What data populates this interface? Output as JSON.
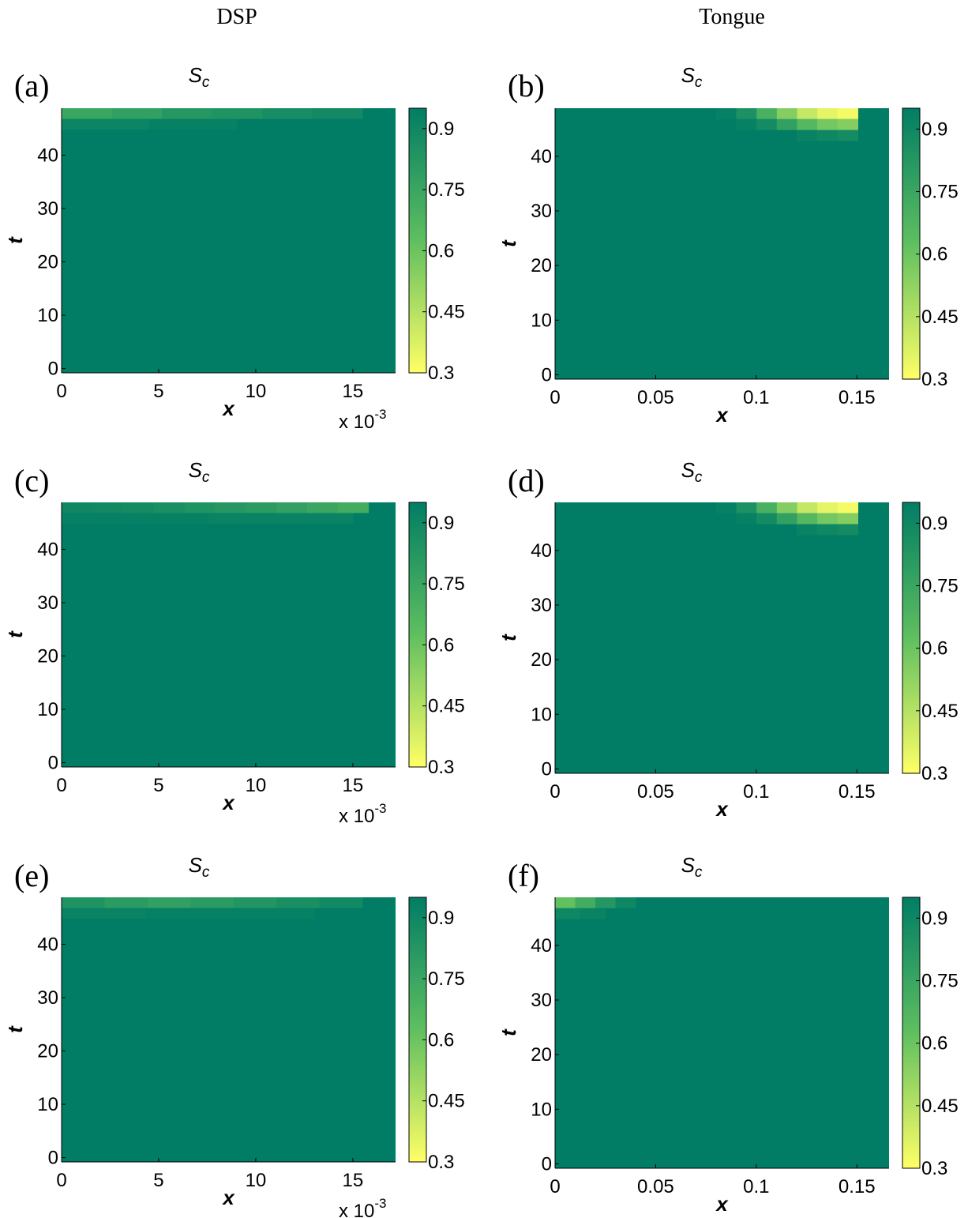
{
  "columns": [
    "DSP",
    "Tongue"
  ],
  "colorscale": {
    "low": "#ffff66",
    "mid": "#5fbf60",
    "high": "#007d64"
  },
  "chart_data": [
    {
      "id": "a",
      "letter": "(a)",
      "type": "heatmap",
      "title": "S",
      "title_sub": "c",
      "xlabel": "x",
      "ylabel": "t",
      "xticks": [
        "0",
        "5",
        "10",
        "15"
      ],
      "xtick_values": [
        0,
        5,
        10,
        15
      ],
      "xlim": [
        0,
        17.2
      ],
      "x_multiplier": "x 10",
      "x_multiplier_exp": "-3",
      "yticks": [
        "0",
        "10",
        "20",
        "30",
        "40"
      ],
      "ytick_values": [
        0,
        10,
        20,
        30,
        40
      ],
      "ylim": [
        -0.8,
        48.8
      ],
      "colorbar_ticks": [
        "0.3",
        "0.45",
        "0.6",
        "0.75",
        "0.9"
      ],
      "colorbar_tick_values": [
        0.3,
        0.45,
        0.6,
        0.75,
        0.9
      ],
      "clim": [
        0.3,
        0.95
      ],
      "background_value": 0.95,
      "rows": [
        {
          "t": [
            46.8,
            48.8
          ],
          "x_from": 0,
          "x_to": 15.5,
          "values": [
            0.75,
            0.78,
            0.82,
            0.84,
            0.87,
            0.89
          ]
        },
        {
          "t": [
            44.8,
            46.8
          ],
          "x_from": 0,
          "x_to": 9.0,
          "values": [
            0.91,
            0.93
          ]
        }
      ]
    },
    {
      "id": "b",
      "letter": "(b)",
      "type": "heatmap",
      "title": "S",
      "title_sub": "c",
      "xlabel": "x",
      "ylabel": "t",
      "xticks": [
        "0",
        "0.05",
        "0.1",
        "0.15"
      ],
      "xtick_values": [
        0,
        0.05,
        0.1,
        0.15
      ],
      "xlim": [
        0,
        0.166
      ],
      "x_multiplier": "",
      "x_multiplier_exp": "",
      "yticks": [
        "0",
        "10",
        "20",
        "30",
        "40"
      ],
      "ytick_values": [
        0,
        10,
        20,
        30,
        40
      ],
      "ylim": [
        -0.8,
        48.8
      ],
      "colorbar_ticks": [
        "0.3",
        "0.45",
        "0.6",
        "0.75",
        "0.9"
      ],
      "colorbar_tick_values": [
        0.3,
        0.45,
        0.6,
        0.75,
        0.9
      ],
      "clim": [
        0.3,
        0.95
      ],
      "background_value": 0.95,
      "rows": [
        {
          "t": [
            46.8,
            48.8
          ],
          "x_from": 0.08,
          "x_to": 0.1505,
          "values": [
            0.93,
            0.85,
            0.7,
            0.55,
            0.42,
            0.35,
            0.32
          ]
        },
        {
          "t": [
            44.8,
            46.8
          ],
          "x_from": 0.09,
          "x_to": 0.1505,
          "values": [
            0.93,
            0.88,
            0.78,
            0.66,
            0.58,
            0.55
          ]
        },
        {
          "t": [
            42.8,
            44.8
          ],
          "x_from": 0.12,
          "x_to": 0.1505,
          "values": [
            0.92,
            0.9,
            0.88
          ]
        }
      ]
    },
    {
      "id": "c",
      "letter": "(c)",
      "type": "heatmap",
      "title": "S",
      "title_sub": "c",
      "xlabel": "x",
      "ylabel": "t",
      "xticks": [
        "0",
        "5",
        "10",
        "15"
      ],
      "xtick_values": [
        0,
        5,
        10,
        15
      ],
      "xlim": [
        0,
        17.2
      ],
      "x_multiplier": "x 10",
      "x_multiplier_exp": "-3",
      "yticks": [
        "0",
        "10",
        "20",
        "30",
        "40"
      ],
      "ytick_values": [
        0,
        10,
        20,
        30,
        40
      ],
      "ylim": [
        -0.8,
        48.8
      ],
      "colorbar_ticks": [
        "0.3",
        "0.45",
        "0.6",
        "0.75",
        "0.9"
      ],
      "colorbar_tick_values": [
        0.3,
        0.45,
        0.6,
        0.75,
        0.9
      ],
      "clim": [
        0.3,
        0.95
      ],
      "background_value": 0.95,
      "rows": [
        {
          "t": [
            46.8,
            48.8
          ],
          "x_from": 0,
          "x_to": 15.8,
          "values": [
            0.9,
            0.89,
            0.88,
            0.86,
            0.84,
            0.82,
            0.8,
            0.78,
            0.75,
            0.72
          ]
        },
        {
          "t": [
            44.8,
            46.8
          ],
          "x_from": 0,
          "x_to": 15.0,
          "values": [
            0.93,
            0.93,
            0.92,
            0.92
          ]
        }
      ]
    },
    {
      "id": "d",
      "letter": "(d)",
      "type": "heatmap",
      "title": "S",
      "title_sub": "c",
      "xlabel": "x",
      "ylabel": "t",
      "xticks": [
        "0",
        "0.05",
        "0.1",
        "0.15"
      ],
      "xtick_values": [
        0,
        0.05,
        0.1,
        0.15
      ],
      "xlim": [
        0,
        0.166
      ],
      "x_multiplier": "",
      "x_multiplier_exp": "",
      "yticks": [
        "0",
        "10",
        "20",
        "30",
        "40"
      ],
      "ytick_values": [
        0,
        10,
        20,
        30,
        40
      ],
      "ylim": [
        -0.8,
        48.8
      ],
      "colorbar_ticks": [
        "0.3",
        "0.45",
        "0.6",
        "0.75",
        "0.9"
      ],
      "colorbar_tick_values": [
        0.3,
        0.45,
        0.6,
        0.75,
        0.9
      ],
      "clim": [
        0.3,
        0.95
      ],
      "background_value": 0.95,
      "rows": [
        {
          "t": [
            46.8,
            48.8
          ],
          "x_from": 0.08,
          "x_to": 0.1505,
          "values": [
            0.93,
            0.85,
            0.7,
            0.55,
            0.42,
            0.35,
            0.32
          ]
        },
        {
          "t": [
            44.8,
            46.8
          ],
          "x_from": 0.09,
          "x_to": 0.1505,
          "values": [
            0.93,
            0.88,
            0.78,
            0.66,
            0.58,
            0.55
          ]
        },
        {
          "t": [
            42.8,
            44.8
          ],
          "x_from": 0.12,
          "x_to": 0.1505,
          "values": [
            0.92,
            0.9,
            0.88
          ]
        }
      ]
    },
    {
      "id": "e",
      "letter": "(e)",
      "type": "heatmap",
      "title": "S",
      "title_sub": "c",
      "xlabel": "x",
      "ylabel": "t",
      "xticks": [
        "0",
        "5",
        "10",
        "15"
      ],
      "xtick_values": [
        0,
        5,
        10,
        15
      ],
      "xlim": [
        0,
        17.2
      ],
      "x_multiplier": "x 10",
      "x_multiplier_exp": "-3",
      "yticks": [
        "0",
        "10",
        "20",
        "30",
        "40"
      ],
      "ytick_values": [
        0,
        10,
        20,
        30,
        40
      ],
      "ylim": [
        -0.8,
        48.8
      ],
      "colorbar_ticks": [
        "0.3",
        "0.45",
        "0.6",
        "0.75",
        "0.9"
      ],
      "colorbar_tick_values": [
        0.3,
        0.45,
        0.6,
        0.75,
        0.9
      ],
      "clim": [
        0.3,
        0.95
      ],
      "background_value": 0.95,
      "rows": [
        {
          "t": [
            46.8,
            48.8
          ],
          "x_from": 0,
          "x_to": 15.5,
          "values": [
            0.84,
            0.8,
            0.78,
            0.8,
            0.83,
            0.86,
            0.89
          ]
        },
        {
          "t": [
            44.8,
            46.8
          ],
          "x_from": 0,
          "x_to": 13.0,
          "values": [
            0.92,
            0.93,
            0.93
          ]
        }
      ]
    },
    {
      "id": "f",
      "letter": "(f)",
      "type": "heatmap",
      "title": "S",
      "title_sub": "c",
      "xlabel": "x",
      "ylabel": "t",
      "xticks": [
        "0",
        "0.05",
        "0.1",
        "0.15"
      ],
      "xtick_values": [
        0,
        0.05,
        0.1,
        0.15
      ],
      "xlim": [
        0,
        0.166
      ],
      "x_multiplier": "",
      "x_multiplier_exp": "",
      "yticks": [
        "0",
        "10",
        "20",
        "30",
        "40"
      ],
      "ytick_values": [
        0,
        10,
        20,
        30,
        40
      ],
      "ylim": [
        -0.8,
        48.8
      ],
      "colorbar_ticks": [
        "0.3",
        "0.45",
        "0.6",
        "0.75",
        "0.9"
      ],
      "colorbar_tick_values": [
        0.3,
        0.45,
        0.6,
        0.75,
        0.9
      ],
      "clim": [
        0.3,
        0.95
      ],
      "background_value": 0.95,
      "rows": [
        {
          "t": [
            46.8,
            48.8
          ],
          "x_from": 0,
          "x_to": 0.04,
          "values": [
            0.62,
            0.72,
            0.82,
            0.9
          ]
        },
        {
          "t": [
            44.8,
            46.8
          ],
          "x_from": 0,
          "x_to": 0.025,
          "values": [
            0.9,
            0.92
          ]
        }
      ]
    }
  ]
}
